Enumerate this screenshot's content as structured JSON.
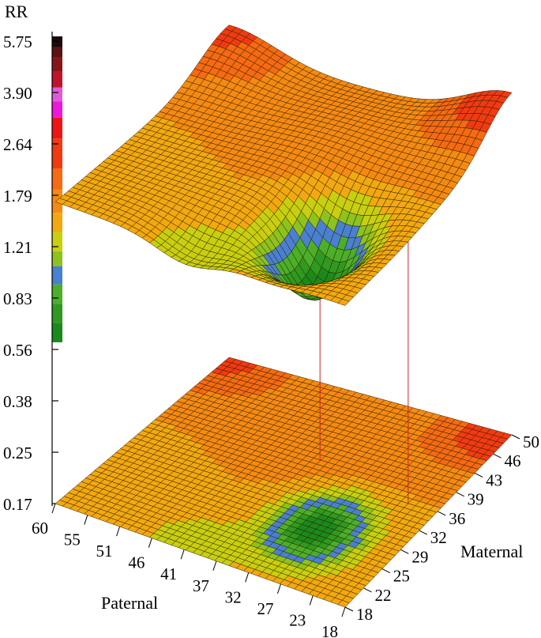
{
  "chart_data": {
    "type": "surface3d",
    "z_axis": {
      "label": "RR",
      "scale": "log",
      "ticks": [
        "5.75",
        "3.90",
        "2.64",
        "1.79",
        "1.21",
        "0.83",
        "0.56",
        "0.38",
        "0.25",
        "0.17"
      ]
    },
    "x_axis": {
      "label": "Paternal",
      "ticks": [
        "60",
        "55",
        "51",
        "46",
        "41",
        "37",
        "32",
        "27",
        "23",
        "18"
      ]
    },
    "y_axis": {
      "label": "Maternal",
      "ticks": [
        "18",
        "22",
        "25",
        "29",
        "32",
        "36",
        "39",
        "43",
        "46",
        "50"
      ]
    },
    "color_scale": [
      {
        "min": 0.56,
        "max": 0.65,
        "color": "#1a8a1a"
      },
      {
        "min": 0.65,
        "max": 0.75,
        "color": "#2f9a1f"
      },
      {
        "min": 0.75,
        "max": 0.87,
        "color": "#4caf2a"
      },
      {
        "min": 0.87,
        "max": 1.0,
        "color": "#4a80d0"
      },
      {
        "min": 1.0,
        "max": 1.12,
        "color": "#8ec21f"
      },
      {
        "min": 1.12,
        "max": 1.3,
        "color": "#c8cf10"
      },
      {
        "min": 1.3,
        "max": 1.5,
        "color": "#f2a810"
      },
      {
        "min": 1.5,
        "max": 1.79,
        "color": "#f58a12"
      },
      {
        "min": 1.79,
        "max": 2.1,
        "color": "#f56a12"
      },
      {
        "min": 2.1,
        "max": 2.64,
        "color": "#f23a12"
      },
      {
        "min": 2.64,
        "max": 3.1,
        "color": "#f01515"
      },
      {
        "min": 3.1,
        "max": 3.5,
        "color": "#ee18d8"
      },
      {
        "min": 3.5,
        "max": 3.9,
        "color": "#e05ad8"
      },
      {
        "min": 3.9,
        "max": 4.4,
        "color": "#c0142c"
      },
      {
        "min": 4.4,
        "max": 4.9,
        "color": "#8a1518"
      },
      {
        "min": 4.9,
        "max": 5.3,
        "color": "#5a1212"
      },
      {
        "min": 5.3,
        "max": 5.75,
        "color": "#1a0a0a"
      }
    ],
    "surface_features": [
      {
        "paternal": 60,
        "maternal": 50,
        "rr": 2.5
      },
      {
        "paternal": 18,
        "maternal": 50,
        "rr": 2.3
      },
      {
        "paternal": 60,
        "maternal": 18,
        "rr": 1.5
      },
      {
        "paternal": 30,
        "maternal": 28,
        "rr": 0.62
      }
    ]
  }
}
